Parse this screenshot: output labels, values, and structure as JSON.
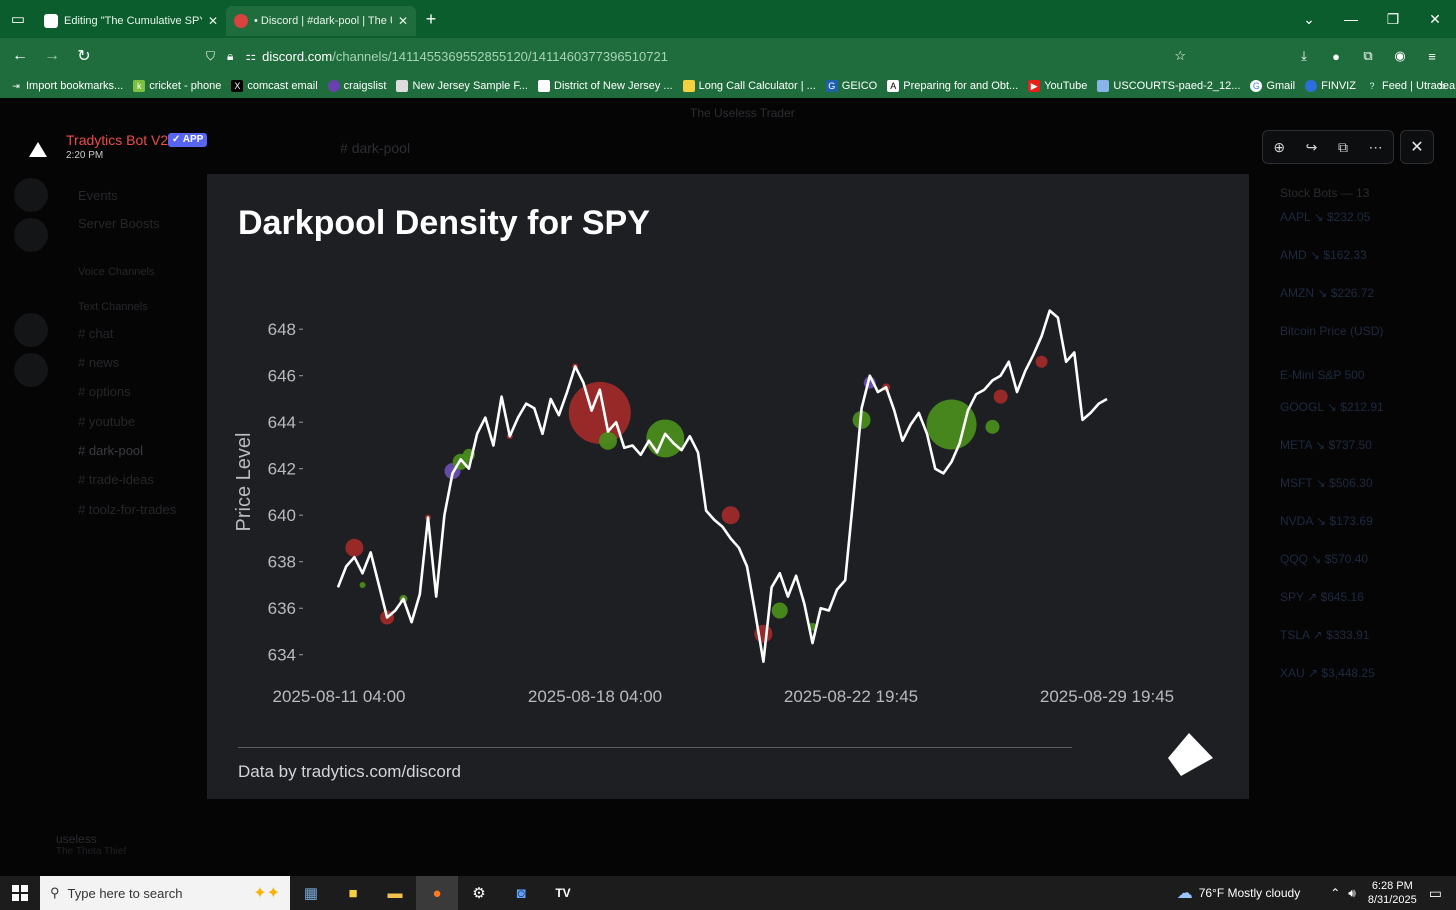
{
  "browser": {
    "tabs": [
      {
        "title": "Editing \"The Cumulative SPY re",
        "active": false
      },
      {
        "title": "• Discord | #dark-pool | The Use",
        "active": true
      }
    ],
    "url_host": "discord.com",
    "url_path": "/channels/1411455369552855120/1411460377396510721",
    "bookmarks": [
      "Import bookmarks...",
      "cricket - phone",
      "comcast email",
      "craigslist",
      "New Jersey Sample F...",
      "District of New Jersey ...",
      "Long Call Calculator | ...",
      "GEICO",
      "Preparing for and Obt...",
      "YouTube",
      "USCOURTS-paed-2_12...",
      "Gmail",
      "FINVIZ",
      "Feed | Utradea"
    ]
  },
  "discord": {
    "server_name": "The Useless Trader",
    "channel_header": "dark-pool",
    "channels": [
      "Events",
      "Server Boosts",
      "Voice Channels",
      "Text Channels",
      "chat",
      "news",
      "options",
      "youtube",
      "dark-pool",
      "trade-ideas",
      "toolz-for-trades"
    ],
    "members_header": "Stock Bots — 13",
    "members": [
      "AAPL ↘ $232.05",
      "AMD ↘ $162.33",
      "AMZN ↘ $226.72",
      "Bitcoin Price (USD)",
      "E-Mini S&P 500",
      "GOOGL ↘ $212.91",
      "META ↘ $737.50",
      "MSFT ↘ $506.30",
      "NVDA ↘ $173.69",
      "QQQ ↘ $570.40",
      "SPY ↗ $645.16",
      "TSLA ↗ $333.91",
      "XAU ↗ $3,448.25"
    ],
    "user_name": "useless",
    "user_status": "The Theta Thief"
  },
  "viewer": {
    "bot_name": "Tradytics Bot V2",
    "app_badge": "✓ APP",
    "time": "2:20 PM"
  },
  "chart_data": {
    "type": "line",
    "title": "Darkpool Density for SPY",
    "xlabel": "",
    "ylabel": "Price Level",
    "ylim": [
      633.3,
      649.6
    ],
    "yticks": [
      634,
      636,
      638,
      640,
      642,
      644,
      646,
      648
    ],
    "xticks": [
      "2025-08-11 04:00",
      "2025-08-18 04:00",
      "2025-08-22 19:45",
      "2025-08-29 19:45"
    ],
    "grid": false,
    "series": [
      {
        "points": [
          [
            0,
            636.9
          ],
          [
            1,
            637.8
          ],
          [
            2,
            638.2
          ],
          [
            3,
            637.5
          ],
          [
            4,
            638.4
          ],
          [
            5,
            637.0
          ],
          [
            6,
            635.6
          ],
          [
            7,
            635.9
          ],
          [
            8,
            636.4
          ],
          [
            9,
            635.4
          ],
          [
            10,
            636.6
          ],
          [
            11,
            639.9
          ],
          [
            12,
            636.5
          ],
          [
            13,
            640.0
          ],
          [
            14,
            641.8
          ],
          [
            15,
            642.4
          ],
          [
            16,
            642.0
          ],
          [
            17,
            643.5
          ],
          [
            18,
            644.2
          ],
          [
            19,
            643.0
          ],
          [
            20,
            645.1
          ],
          [
            21,
            643.4
          ],
          [
            22,
            644.2
          ],
          [
            23,
            644.8
          ],
          [
            24,
            644.6
          ],
          [
            25,
            643.5
          ],
          [
            26,
            645.0
          ],
          [
            27,
            644.3
          ],
          [
            28,
            645.3
          ],
          [
            29,
            646.4
          ],
          [
            30,
            645.7
          ],
          [
            31,
            644.5
          ],
          [
            32,
            645.4
          ],
          [
            33,
            643.6
          ],
          [
            34,
            644.0
          ],
          [
            35,
            642.9
          ],
          [
            36,
            643.0
          ],
          [
            37,
            642.6
          ],
          [
            38,
            643.2
          ],
          [
            39,
            642.7
          ],
          [
            40,
            643.5
          ],
          [
            41,
            643.1
          ],
          [
            42,
            642.8
          ],
          [
            43,
            643.4
          ],
          [
            44,
            642.7
          ],
          [
            45,
            640.2
          ],
          [
            46,
            639.8
          ],
          [
            47,
            639.5
          ],
          [
            48,
            639.0
          ],
          [
            49,
            638.6
          ],
          [
            50,
            637.8
          ],
          [
            51,
            635.8
          ],
          [
            52,
            633.7
          ],
          [
            53,
            636.9
          ],
          [
            54,
            637.5
          ],
          [
            55,
            636.5
          ],
          [
            56,
            637.4
          ],
          [
            57,
            636.2
          ],
          [
            58,
            634.5
          ],
          [
            59,
            636.0
          ],
          [
            60,
            635.9
          ],
          [
            61,
            636.8
          ],
          [
            62,
            637.2
          ],
          [
            63,
            640.8
          ],
          [
            64,
            644.6
          ],
          [
            65,
            646.0
          ],
          [
            66,
            645.3
          ],
          [
            67,
            645.5
          ],
          [
            68,
            644.5
          ],
          [
            69,
            643.2
          ],
          [
            70,
            643.9
          ],
          [
            71,
            644.4
          ],
          [
            72,
            643.5
          ],
          [
            73,
            642.0
          ],
          [
            74,
            641.8
          ],
          [
            75,
            642.3
          ],
          [
            76,
            643.1
          ],
          [
            77,
            644.5
          ],
          [
            78,
            645.2
          ],
          [
            79,
            645.4
          ],
          [
            80,
            645.8
          ],
          [
            81,
            646.0
          ],
          [
            82,
            646.6
          ],
          [
            83,
            645.3
          ],
          [
            84,
            646.2
          ],
          [
            85,
            646.9
          ],
          [
            86,
            647.7
          ],
          [
            87,
            648.8
          ],
          [
            88,
            648.5
          ],
          [
            89,
            646.6
          ],
          [
            90,
            647.0
          ],
          [
            91,
            644.1
          ],
          [
            92,
            644.4
          ],
          [
            93,
            644.8
          ],
          [
            94,
            645.0
          ]
        ]
      }
    ],
    "bubbles": [
      {
        "x": 2,
        "y": 638.6,
        "size": 9,
        "color": "#a22a2a"
      },
      {
        "x": 3,
        "y": 637.0,
        "size": 3,
        "color": "#4a8f1c"
      },
      {
        "x": 6,
        "y": 635.6,
        "size": 7,
        "color": "#a22a2a"
      },
      {
        "x": 8,
        "y": 636.4,
        "size": 4,
        "color": "#4a8f1c"
      },
      {
        "x": 11,
        "y": 639.9,
        "size": 3,
        "color": "#a22a2a"
      },
      {
        "x": 14,
        "y": 641.9,
        "size": 8,
        "color": "#6a4fb3"
      },
      {
        "x": 15,
        "y": 642.3,
        "size": 8,
        "color": "#4a8f1c"
      },
      {
        "x": 16,
        "y": 642.6,
        "size": 6,
        "color": "#4a8f1c"
      },
      {
        "x": 21,
        "y": 643.4,
        "size": 3,
        "color": "#a22a2a"
      },
      {
        "x": 29,
        "y": 646.4,
        "size": 3,
        "color": "#a22a2a"
      },
      {
        "x": 32,
        "y": 644.4,
        "size": 31,
        "color": "#a22a2a"
      },
      {
        "x": 33,
        "y": 643.2,
        "size": 9,
        "color": "#4a8f1c"
      },
      {
        "x": 40,
        "y": 643.3,
        "size": 19,
        "color": "#4a8f1c"
      },
      {
        "x": 48,
        "y": 640.0,
        "size": 9,
        "color": "#a22a2a"
      },
      {
        "x": 52,
        "y": 634.9,
        "size": 9,
        "color": "#a22a2a"
      },
      {
        "x": 54,
        "y": 635.9,
        "size": 8,
        "color": "#4a8f1c"
      },
      {
        "x": 58,
        "y": 635.2,
        "size": 4,
        "color": "#4a8f1c"
      },
      {
        "x": 64,
        "y": 644.1,
        "size": 9,
        "color": "#4a8f1c"
      },
      {
        "x": 65,
        "y": 645.7,
        "size": 6,
        "color": "#6a4fb3"
      },
      {
        "x": 67,
        "y": 645.5,
        "size": 4,
        "color": "#a22a2a"
      },
      {
        "x": 75,
        "y": 643.9,
        "size": 25,
        "color": "#4a8f1c"
      },
      {
        "x": 80,
        "y": 643.8,
        "size": 7,
        "color": "#4a8f1c"
      },
      {
        "x": 81,
        "y": 645.1,
        "size": 7,
        "color": "#a22a2a"
      },
      {
        "x": 86,
        "y": 646.6,
        "size": 6,
        "color": "#a22a2a"
      }
    ]
  },
  "card": {
    "footer": "Data by tradytics.com/discord"
  },
  "taskbar": {
    "search_placeholder": "Type here to search",
    "weather": "76°F  Mostly cloudy",
    "time": "6:28 PM",
    "date": "8/31/2025"
  }
}
